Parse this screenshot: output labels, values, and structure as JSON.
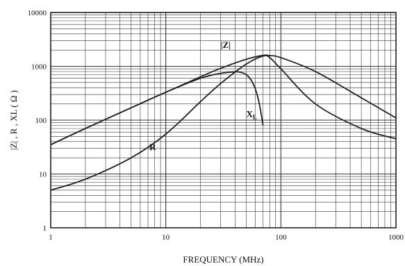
{
  "chart_data": {
    "type": "line",
    "title": "",
    "xlabel": "FREQUENCY (MHz)",
    "ylabel": "|Z| , R , XL ( Ω )",
    "xscale": "log",
    "yscale": "log",
    "xlim": [
      1,
      1000
    ],
    "ylim": [
      1,
      10000
    ],
    "grid": true,
    "legend": "none",
    "xticks": [
      "1",
      "10",
      "100",
      "1000"
    ],
    "yticks": [
      "1",
      "10",
      "100",
      "1000",
      "10000"
    ],
    "series": [
      {
        "name": "|Z|",
        "color": "#222222",
        "x": [
          1,
          2,
          5,
          10,
          20,
          30,
          50,
          70,
          80,
          100,
          200,
          500,
          1000
        ],
        "y": [
          35,
          70,
          170,
          330,
          640,
          920,
          1350,
          1600,
          1580,
          1450,
          800,
          260,
          110
        ]
      },
      {
        "name": "R",
        "color": "#222222",
        "x": [
          1,
          2,
          5,
          10,
          20,
          30,
          50,
          70,
          80,
          100,
          200,
          500,
          1000
        ],
        "y": [
          5,
          8,
          20,
          55,
          220,
          480,
          1100,
          1550,
          1450,
          900,
          200,
          70,
          45
        ]
      },
      {
        "name": "XL",
        "color": "#222222",
        "x": [
          1,
          2,
          5,
          10,
          20,
          30,
          40,
          45,
          50,
          55,
          60,
          65,
          70
        ],
        "y": [
          35,
          70,
          170,
          330,
          600,
          740,
          790,
          770,
          700,
          560,
          380,
          200,
          80
        ]
      }
    ],
    "labels": {
      "z": "|Z|",
      "r": "R",
      "xl_main": "X",
      "xl_sub": "L"
    }
  }
}
